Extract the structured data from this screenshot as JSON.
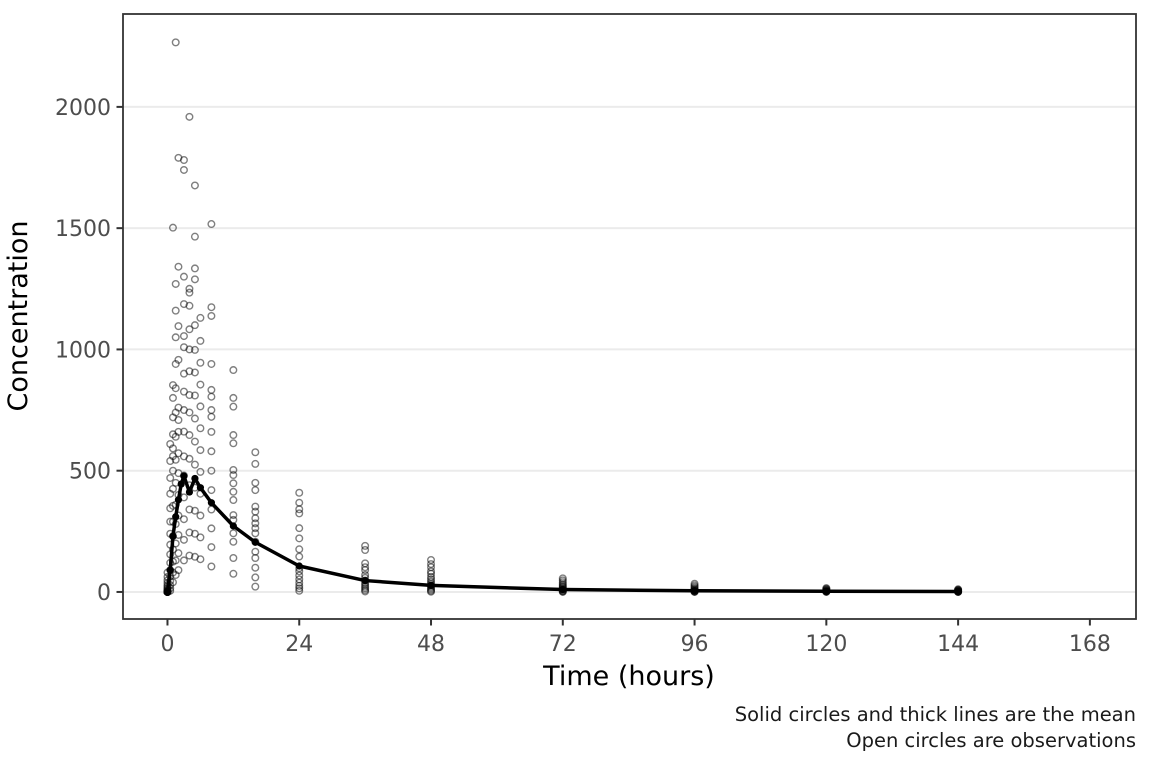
{
  "figure": {
    "kind": "static-plot",
    "background": "#ffffff"
  },
  "chart_data": {
    "type": "scatter",
    "title": "",
    "xlabel": "Time (hours)",
    "ylabel": "Concentration",
    "caption_line1": "Solid circles and thick lines are the mean",
    "caption_line2": "Open circles are observations",
    "legend_position": "none",
    "grid": "horizontal-major-only",
    "xlim": [
      -8.1,
      176.4
    ],
    "ylim": [
      -111.5,
      2383
    ],
    "x_ticks": [
      0,
      24,
      48,
      72,
      96,
      120,
      144,
      168
    ],
    "y_ticks": [
      0,
      500,
      1000,
      1500,
      2000
    ],
    "colors": {
      "observation_stroke": "rgba(0,0,0,0.5)",
      "mean_line": "#000000",
      "gridline": "#ebebeb",
      "panel_border": "#333333",
      "tick_mark": "#333333",
      "tick_text": "#4d4d4d"
    },
    "mean_series": {
      "name": "mean",
      "t": [
        0,
        0.5,
        1,
        1.5,
        2,
        2.5,
        3,
        4,
        5,
        6,
        8,
        12,
        16,
        24,
        36,
        48,
        72,
        96,
        120,
        144
      ],
      "values": [
        2,
        90,
        230,
        310,
        380,
        445,
        478,
        412,
        468,
        430,
        368,
        272,
        205,
        107,
        47,
        27,
        10,
        5,
        3,
        2
      ]
    },
    "observations": [
      {
        "t": 0,
        "values": [
          0,
          0,
          0,
          0,
          0,
          0,
          0,
          0,
          3,
          6,
          10,
          15,
          21,
          28,
          37,
          48,
          62,
          80
        ]
      },
      {
        "t": 0.5,
        "values": [
          5,
          15,
          28,
          45,
          65,
          90,
          120,
          155,
          195,
          240,
          290,
          345,
          405,
          470,
          540,
          610
        ]
      },
      {
        "t": 1,
        "values": [
          40,
          80,
          125,
          175,
          230,
          290,
          355,
          425,
          500,
          560,
          592,
          650,
          720,
          800,
          853,
          1502
        ]
      },
      {
        "t": 1.5,
        "values": [
          70,
          130,
          200,
          280,
          360,
          450,
          545,
          640,
          740,
          840,
          940,
          1050,
          1160,
          1270,
          2266
        ]
      },
      {
        "t": 2,
        "values": [
          90,
          160,
          235,
          315,
          400,
          490,
          572,
          660,
          709,
          760,
          957,
          1096,
          1341,
          1790
        ]
      },
      {
        "t": 3,
        "values": [
          130,
          215,
          300,
          390,
          480,
          559,
          661,
          750,
          826,
          900,
          1009,
          1055,
          1187,
          1300,
          1740,
          1781
        ]
      },
      {
        "t": 4,
        "values": [
          150,
          245,
          340,
          440,
          549,
          647,
          740,
          812,
          910,
          1000,
          1083,
          1180,
          1234,
          1250,
          1959
        ]
      },
      {
        "t": 5,
        "values": [
          145,
          240,
          335,
          430,
          525,
          620,
          715,
          810,
          905,
          998,
          1100,
          1289,
          1334,
          1465,
          1676
        ]
      },
      {
        "t": 6,
        "values": [
          135,
          225,
          315,
          405,
          495,
          585,
          675,
          765,
          855,
          945,
          1035,
          1130
        ]
      },
      {
        "t": 8,
        "values": [
          105,
          185,
          262,
          340,
          420,
          500,
          580,
          660,
          722,
          750,
          805,
          833,
          940,
          1138,
          1174,
          1517
        ]
      },
      {
        "t": 12,
        "values": [
          75,
          140,
          207,
          242,
          297,
          317,
          379,
          413,
          448,
          482,
          503,
          613,
          647,
          764,
          800,
          915
        ]
      },
      {
        "t": 16,
        "values": [
          22,
          60,
          100,
          140,
          166,
          207,
          242,
          263,
          283,
          304,
          331,
          352,
          420,
          450,
          528,
          576
        ]
      },
      {
        "t": 24,
        "values": [
          5,
          15,
          25,
          38,
          52,
          68,
          85,
          98,
          146,
          176,
          221,
          263,
          324,
          341,
          368,
          409
        ]
      },
      {
        "t": 36,
        "values": [
          2,
          8,
          15,
          22,
          30,
          38,
          47,
          58,
          70,
          90,
          102,
          118,
          173,
          190
        ]
      },
      {
        "t": 48,
        "values": [
          1,
          5,
          10,
          16,
          22,
          28,
          35,
          43,
          52,
          62,
          75,
          85,
          102,
          115,
          132
        ]
      },
      {
        "t": 72,
        "values": [
          0,
          2,
          4,
          7,
          10,
          14,
          18,
          22,
          27,
          33,
          40,
          48,
          56
        ]
      },
      {
        "t": 96,
        "values": [
          0,
          1,
          2,
          4,
          6,
          9,
          12,
          16,
          21,
          27,
          34
        ]
      },
      {
        "t": 120,
        "values": [
          0,
          1,
          2,
          3,
          4,
          6,
          8,
          10,
          13,
          16
        ]
      },
      {
        "t": 144,
        "values": [
          0,
          0,
          1,
          2,
          3,
          4,
          5,
          7,
          9,
          11
        ]
      }
    ]
  }
}
